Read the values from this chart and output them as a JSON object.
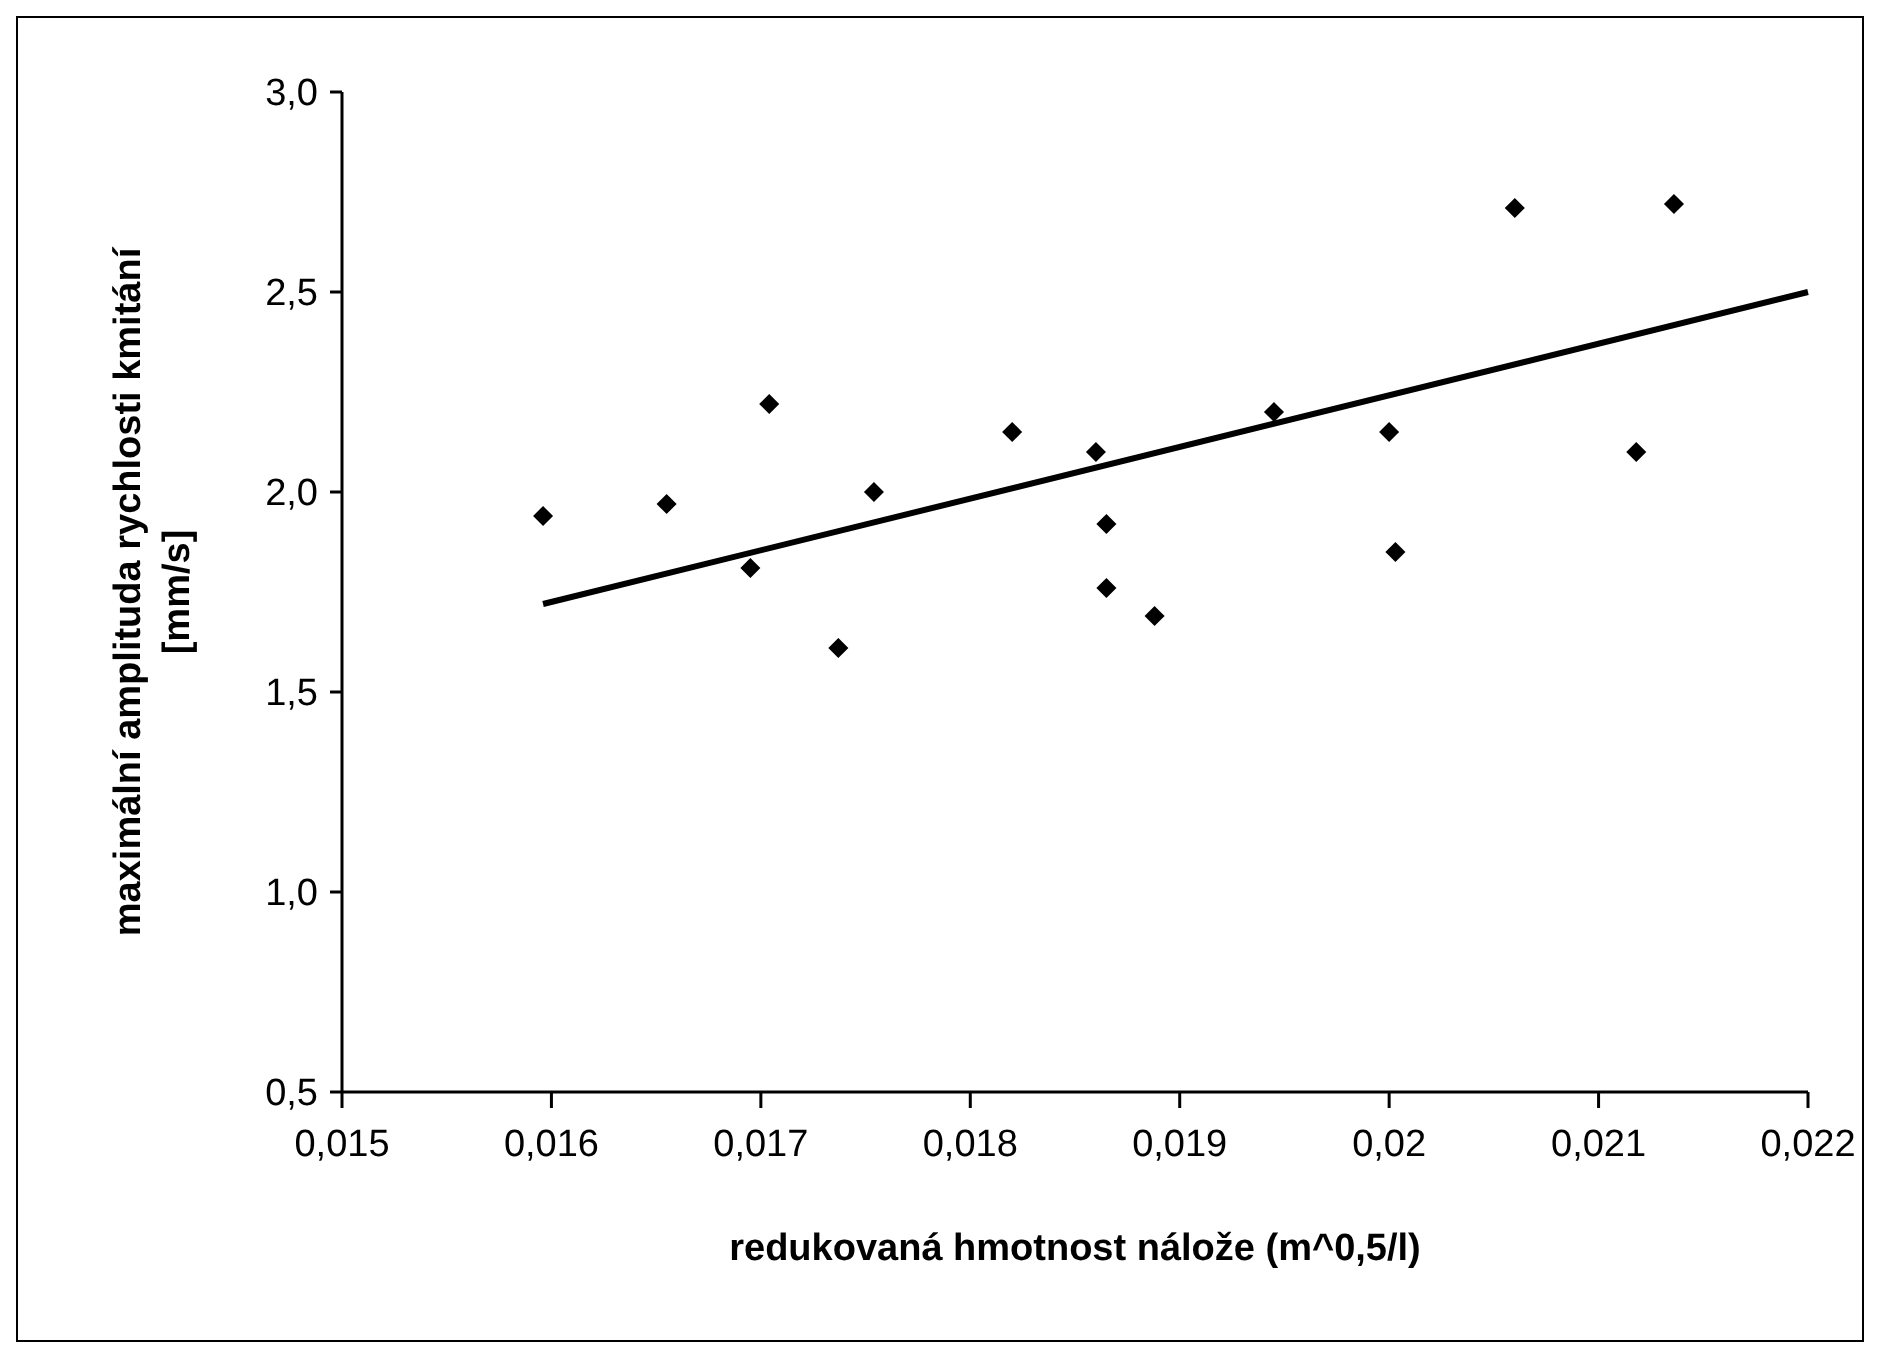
{
  "chart_data": {
    "type": "scatter",
    "xlabel": "redukovaná hmotnost nálože (m^0,5/l)",
    "ylabel": "maximální amplituda rychlosti kmitání [mm/s]",
    "marker": "diamond",
    "grid": false,
    "xlim": [
      0.015,
      0.022
    ],
    "ylim": [
      0.5,
      3.0
    ],
    "xticks": [
      {
        "value": 0.015,
        "label": "0,015"
      },
      {
        "value": 0.016,
        "label": "0,016"
      },
      {
        "value": 0.017,
        "label": "0,017"
      },
      {
        "value": 0.018,
        "label": "0,018"
      },
      {
        "value": 0.019,
        "label": "0,019"
      },
      {
        "value": 0.02,
        "label": "0,02"
      },
      {
        "value": 0.021,
        "label": "0,021"
      },
      {
        "value": 0.022,
        "label": "0,022"
      }
    ],
    "yticks": [
      {
        "value": 0.5,
        "label": "0,5"
      },
      {
        "value": 1.0,
        "label": "1,0"
      },
      {
        "value": 1.5,
        "label": "1,5"
      },
      {
        "value": 2.0,
        "label": "2,0"
      },
      {
        "value": 2.5,
        "label": "2,5"
      },
      {
        "value": 3.0,
        "label": "3,0"
      }
    ],
    "series": [
      {
        "color": "#000000",
        "x": [
          0.01596,
          0.01655,
          0.01704,
          0.01695,
          0.01737,
          0.01754,
          0.0182,
          0.0186,
          0.01865,
          0.01865,
          0.01888,
          0.01945,
          0.02,
          0.02003,
          0.0206,
          0.02118,
          0.02136
        ],
        "values": [
          1.94,
          1.97,
          2.22,
          1.81,
          1.61,
          2.0,
          2.15,
          2.1,
          1.92,
          1.76,
          1.69,
          2.2,
          2.15,
          1.85,
          2.71,
          2.1,
          2.72
        ]
      },
      {
        "type": "line",
        "color": "#000000",
        "marker": "none",
        "x": [
          0.01596,
          0.022
        ],
        "values": [
          1.72,
          2.5
        ]
      }
    ]
  }
}
